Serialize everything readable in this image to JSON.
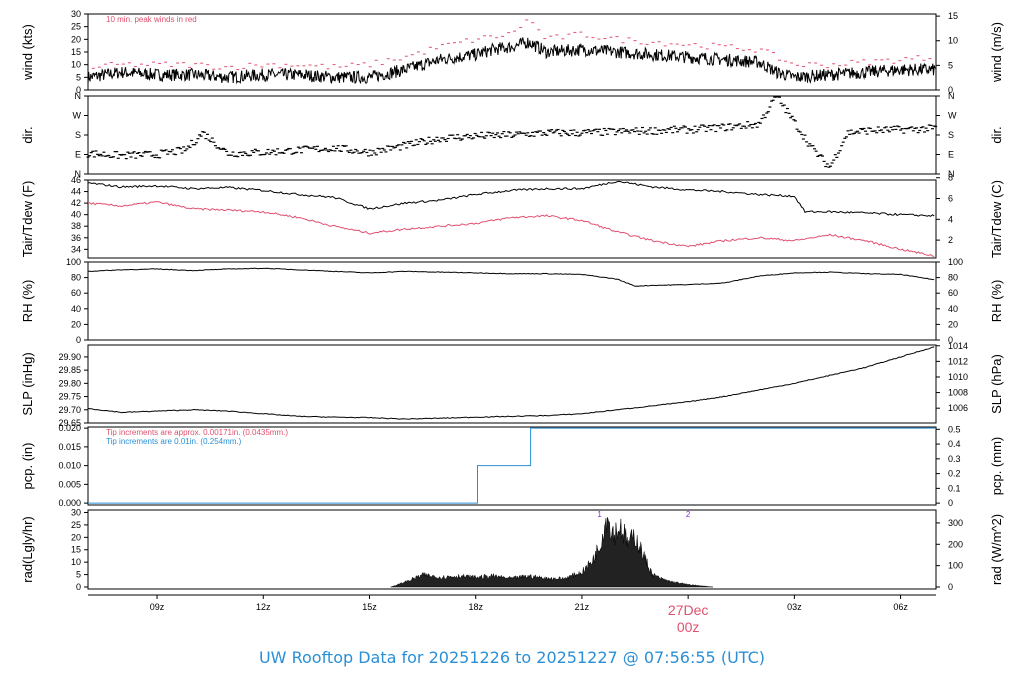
{
  "footer_title": "UW Rooftop Data for 20251226  to  20251227 @ 07:56:55  (UTC)",
  "x_axis": {
    "ticks": [
      "09z",
      "12z",
      "15z",
      "18z",
      "21z",
      "00z",
      "03z",
      "06z"
    ],
    "tick_hours": [
      9,
      12,
      15,
      18,
      21,
      24,
      27,
      30
    ],
    "range_hours": [
      7.05,
      31.0
    ],
    "date_label": "27Dec",
    "date_hour": 24,
    "date_color": "#e0506e"
  },
  "colors": {
    "main": "#000000",
    "red": "#e0506e",
    "blue": "#2a8fd6",
    "purple": "#8a2be2"
  },
  "chart_data": [
    {
      "id": "wind",
      "type": "line",
      "ylabel_left": "wind (kts)",
      "ylabel_right": "wind (m/s)",
      "ylim": [
        0,
        30
      ],
      "yticks": [
        0,
        5,
        10,
        15,
        20,
        25,
        30
      ],
      "right_ylim": [
        0,
        15.43
      ],
      "right_ticks": [
        0,
        5,
        10,
        15
      ],
      "annotation": "10 min. peak winds in red",
      "series": [
        {
          "values_x": [
            7.05,
            8,
            9,
            10,
            11,
            12,
            13,
            14,
            15,
            16,
            17,
            18,
            18.5,
            19,
            19.5,
            20,
            21,
            22,
            23,
            24,
            25,
            26,
            26.5,
            27,
            28,
            29,
            30,
            31
          ],
          "values_y": [
            5,
            7,
            6,
            6,
            5,
            6,
            6,
            5,
            5,
            8,
            12,
            14,
            16,
            17,
            19,
            15,
            16,
            15,
            14,
            13,
            12,
            11,
            7,
            5,
            6,
            7,
            8,
            8
          ]
        },
        {
          "values_x": [
            7.2,
            8,
            9,
            10,
            11,
            12,
            13,
            14,
            15,
            16,
            17,
            18,
            19,
            19.5,
            20,
            21,
            22,
            23,
            24,
            25,
            26,
            27,
            28,
            29,
            30,
            31
          ],
          "values_y": [
            9,
            10,
            10,
            10,
            9,
            10,
            10,
            9,
            10,
            13,
            17,
            20,
            22,
            28,
            20,
            22,
            20,
            19,
            18,
            17,
            16,
            10,
            10,
            11,
            12,
            13
          ]
        }
      ]
    },
    {
      "id": "dir",
      "type": "scatter",
      "ylabel_left": "dir.",
      "ylabel_right": "dir.",
      "yticks_labels": [
        "N",
        "E",
        "S",
        "W",
        "N"
      ],
      "yticks_values": [
        0,
        90,
        180,
        270,
        360
      ],
      "ylim": [
        0,
        360
      ],
      "values_x": [
        7.05,
        8,
        9,
        9.8,
        10.3,
        11,
        12,
        13,
        14,
        15,
        16,
        17,
        18,
        19,
        20,
        21,
        22,
        23,
        24,
        25,
        26,
        26.5,
        27,
        27.5,
        28,
        28.5,
        29,
        30,
        31
      ],
      "values_y": [
        95,
        85,
        90,
        110,
        190,
        95,
        100,
        110,
        120,
        100,
        130,
        165,
        175,
        180,
        190,
        190,
        195,
        200,
        205,
        215,
        230,
        360,
        240,
        120,
        30,
        190,
        200,
        205,
        210
      ]
    },
    {
      "id": "temp",
      "type": "line",
      "ylabel_left": "Tair/Tdew (F)",
      "ylabel_right": "Tair/Tdew (C)",
      "ylim": [
        32.5,
        46
      ],
      "yticks": [
        34,
        36,
        38,
        40,
        42,
        44,
        46
      ],
      "right_ylim": [
        0.28,
        7.78
      ],
      "right_ticks": [
        2,
        4,
        6,
        8
      ],
      "series": [
        {
          "name": "Tair",
          "values_x": [
            7.05,
            8,
            9,
            10,
            11,
            12,
            13,
            14,
            15,
            16,
            17,
            18,
            19,
            20,
            21,
            22,
            23,
            24,
            25,
            26,
            27,
            27.3,
            28,
            29,
            30,
            31
          ],
          "values_y": [
            45.5,
            44.8,
            45.0,
            44.5,
            44.7,
            44.2,
            43.5,
            43.0,
            41.0,
            42.0,
            42.5,
            43.5,
            44.2,
            44.5,
            44.5,
            45.8,
            44.8,
            44.3,
            44.0,
            43.5,
            43.2,
            40.5,
            40.5,
            40.3,
            40.0,
            39.8
          ]
        },
        {
          "name": "Tdew",
          "values_x": [
            7.05,
            8,
            9,
            10,
            11,
            12,
            13,
            14,
            15,
            16,
            17,
            18,
            19,
            20,
            21,
            22,
            23,
            24,
            25,
            26,
            27,
            28,
            29,
            30,
            31
          ],
          "values_y": [
            42.0,
            41.5,
            42.2,
            41.0,
            40.8,
            40.5,
            39.5,
            38.0,
            36.8,
            37.5,
            38.0,
            38.5,
            39.5,
            39.8,
            39.0,
            37.0,
            35.5,
            34.5,
            35.5,
            36.0,
            35.5,
            36.5,
            35.5,
            34.0,
            32.8
          ]
        }
      ]
    },
    {
      "id": "rh",
      "type": "line",
      "ylabel_left": "RH (%)",
      "ylabel_right": "RH (%)",
      "ylim": [
        0,
        100
      ],
      "yticks": [
        0,
        20,
        40,
        60,
        80,
        100
      ],
      "series": [
        {
          "values_x": [
            7.05,
            8,
            9,
            10,
            11,
            12,
            13,
            14,
            15,
            16,
            17,
            18,
            19,
            20,
            21,
            22,
            22.5,
            23,
            24,
            25,
            26,
            27,
            28,
            29,
            30,
            31
          ],
          "values_y": [
            88,
            90,
            91,
            89,
            91,
            92,
            90,
            88,
            86,
            88,
            87,
            86,
            85,
            85,
            84,
            78,
            69,
            70,
            71,
            73,
            82,
            86,
            87,
            85,
            84,
            77
          ]
        }
      ]
    },
    {
      "id": "slp",
      "type": "line",
      "ylabel_left": "SLP (inHg)",
      "ylabel_right": "SLP (hPa)",
      "ylim": [
        29.65,
        29.945
      ],
      "yticks": [
        29.65,
        29.7,
        29.75,
        29.8,
        29.85,
        29.9
      ],
      "ytick_labels": [
        "29.65",
        "29.70",
        "29.75",
        "29.80",
        "29.85",
        "29.90"
      ],
      "right_ylim": [
        1004.1,
        1014.1
      ],
      "right_ticks": [
        1006,
        1008,
        1010,
        1012,
        1014
      ],
      "series": [
        {
          "values_x": [
            7.05,
            8,
            9,
            10,
            11,
            12,
            13,
            14,
            15,
            16,
            17,
            18,
            19,
            20,
            21,
            22,
            23,
            24,
            25,
            26,
            27,
            28,
            29,
            30,
            31
          ],
          "values_y": [
            29.705,
            29.69,
            29.695,
            29.7,
            29.695,
            29.685,
            29.675,
            29.672,
            29.67,
            29.665,
            29.668,
            29.672,
            29.675,
            29.678,
            29.685,
            29.7,
            29.715,
            29.73,
            29.75,
            29.775,
            29.8,
            29.83,
            29.86,
            29.9,
            29.94
          ]
        }
      ]
    },
    {
      "id": "pcp",
      "type": "line",
      "ylabel_left": "pcp. (in)",
      "ylabel_right": "pcp. (mm)",
      "ylim": [
        -0.0005,
        0.0203
      ],
      "yticks": [
        0.0,
        0.005,
        0.01,
        0.015,
        0.02
      ],
      "ytick_labels": [
        "0.000",
        "0.005",
        "0.010",
        "0.015",
        "0.020"
      ],
      "right_ylim": [
        -0.0127,
        0.5156
      ],
      "right_ticks": [
        0,
        0.1,
        0.2,
        0.3,
        0.4,
        0.5
      ],
      "right_tick_labels": [
        "0",
        "0.1",
        "0.2",
        "0.3",
        "0.4",
        "0.5"
      ],
      "annotation_red": "Tip increments are approx. 0.00171in. (0.0435mm.)",
      "annotation_blue": "Tip increments are 0.01in. (0.254mm.)",
      "series": [
        {
          "values_x": [
            7.05,
            18.05,
            18.05,
            19.55,
            19.55,
            31.0
          ],
          "values_y": [
            0.0,
            0.0,
            0.01,
            0.01,
            0.02,
            0.02
          ]
        }
      ]
    },
    {
      "id": "rad",
      "type": "area",
      "ylabel_left": "rad(Lgly/hr)",
      "ylabel_right": "rad (W/m^2)",
      "ylim": [
        -0.8,
        31
      ],
      "yticks": [
        0,
        5,
        10,
        15,
        20,
        25,
        30
      ],
      "right_ylim": [
        -9.3,
        360.5
      ],
      "right_ticks": [
        0,
        100,
        200,
        300
      ],
      "markers": [
        {
          "label": "1",
          "x": 21.5
        },
        {
          "label": "2",
          "x": 24.0
        }
      ],
      "values_x": [
        15.6,
        16.0,
        16.5,
        17.0,
        17.5,
        18.0,
        18.5,
        19.0,
        19.5,
        20.0,
        20.5,
        21.0,
        21.3,
        21.5,
        21.7,
        21.9,
        22.1,
        22.3,
        22.5,
        22.8,
        23.0,
        23.3,
        23.6,
        24.0,
        24.7
      ],
      "values_y": [
        0,
        2,
        5,
        4,
        4.5,
        4,
        4.5,
        3.5,
        4.5,
        3.5,
        3.5,
        6,
        11,
        17,
        29,
        22,
        25,
        18,
        21,
        11,
        5,
        3,
        2,
        1,
        0
      ]
    }
  ]
}
